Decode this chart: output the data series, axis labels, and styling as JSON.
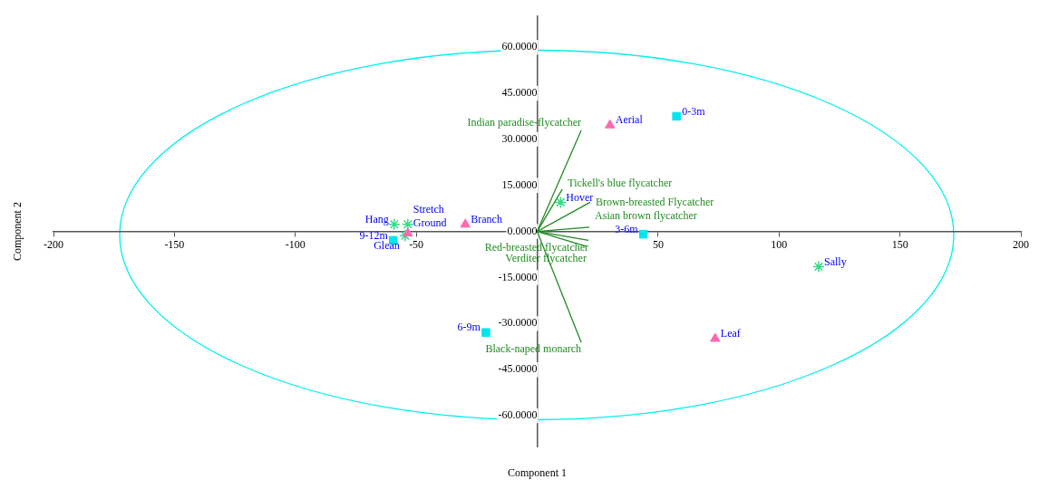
{
  "chart_data": {
    "type": "scatter",
    "xlabel": "Component 1",
    "ylabel": "Component 2",
    "xlim": [
      -200,
      200
    ],
    "xticks": [
      -200,
      -150,
      -100,
      -50,
      50,
      100,
      150,
      200
    ],
    "ylim": [
      -70,
      70
    ],
    "yticks": [
      {
        "value": -60,
        "label": "-60.0000"
      },
      {
        "value": -45,
        "label": "-45.0000"
      },
      {
        "value": -30,
        "label": "-30.0000"
      },
      {
        "value": -15,
        "label": "-15.0000"
      },
      {
        "value": 0,
        "label": "0.0000"
      },
      {
        "value": 15,
        "label": "15.0000"
      },
      {
        "value": 30,
        "label": "30.0000"
      },
      {
        "value": 45,
        "label": "45.0000"
      },
      {
        "value": 60,
        "label": "60.0000"
      }
    ],
    "grid": false,
    "legend": false,
    "series": [
      {
        "type": "line",
        "name": "Indian paradise-flycatcher",
        "color": "#228b22",
        "marker": "none",
        "x": [
          0,
          18.2
        ],
        "values": [
          0,
          32.9
        ]
      },
      {
        "type": "line",
        "name": "Tickell's blue flycatcher",
        "color": "#228b22",
        "marker": "none",
        "x": [
          0,
          10.4
        ],
        "values": [
          0,
          13.8
        ]
      },
      {
        "type": "line",
        "name": "Brown-breasted Flycatcher",
        "color": "#228b22",
        "marker": "none",
        "x": [
          0,
          21.9
        ],
        "values": [
          0,
          9.5
        ]
      },
      {
        "type": "line",
        "name": "Asian brown flycatcher",
        "color": "#228b22",
        "marker": "none",
        "x": [
          0,
          21.6
        ],
        "values": [
          0,
          1.4
        ]
      },
      {
        "type": "line",
        "name": "Red-breasted flycatcher",
        "color": "#228b22",
        "marker": "none",
        "x": [
          0,
          21.2
        ],
        "values": [
          0,
          -2.9
        ]
      },
      {
        "type": "line",
        "name": "Verditer flycatcher",
        "color": "#228b22",
        "marker": "none",
        "x": [
          0,
          20.4
        ],
        "values": [
          0,
          -4.9
        ]
      },
      {
        "type": "line",
        "name": "Black-naped monarch",
        "color": "#228b22",
        "marker": "none",
        "x": [
          0,
          18.2
        ],
        "values": [
          0,
          -36.1
        ]
      },
      {
        "name": "0-3m",
        "color": "#00e5ee",
        "marker": "square",
        "x": [
          57.6
        ],
        "values": [
          37.5
        ]
      },
      {
        "name": "3-6m",
        "color": "#00e5ee",
        "marker": "square",
        "x": [
          43.9
        ],
        "values": [
          -0.9
        ]
      },
      {
        "name": "6-9m",
        "color": "#00e5ee",
        "marker": "square",
        "x": [
          -21.2
        ],
        "values": [
          -32.9
        ]
      },
      {
        "name": "9-12m",
        "color": "#00e5ee",
        "marker": "square",
        "x": [
          -59.5
        ],
        "values": [
          -2.9
        ]
      },
      {
        "name": "Aerial",
        "color": "#ff69b4",
        "marker": "triangle",
        "x": [
          30.1
        ],
        "values": [
          34.6
        ]
      },
      {
        "name": "Branch",
        "color": "#ff69b4",
        "marker": "triangle",
        "x": [
          -29.7
        ],
        "values": [
          2.3
        ]
      },
      {
        "name": "Leaf",
        "color": "#ff69b4",
        "marker": "triangle",
        "x": [
          73.6
        ],
        "values": [
          -34.9
        ]
      },
      {
        "name": "Ground",
        "color": "#ff69b4",
        "marker": "triangle",
        "x": [
          -53.5
        ],
        "values": [
          -0.6
        ]
      },
      {
        "name": "Hover",
        "color": "#33dd88",
        "marker": "cross",
        "x": [
          9.7
        ],
        "values": [
          9.5
        ]
      },
      {
        "name": "Sally",
        "color": "#33dd88",
        "marker": "cross",
        "x": [
          116.4
        ],
        "values": [
          -11.5
        ]
      },
      {
        "name": "Hang",
        "color": "#33dd88",
        "marker": "cross",
        "x": [
          -59.1
        ],
        "values": [
          2.3
        ]
      },
      {
        "name": "Stretch",
        "color": "#33dd88",
        "marker": "cross",
        "x": [
          -53.5
        ],
        "values": [
          2.3
        ]
      },
      {
        "name": "Glean",
        "color": "#33dd88",
        "marker": "cross",
        "x": [
          -54.6
        ],
        "values": [
          -1.4
        ]
      }
    ]
  }
}
